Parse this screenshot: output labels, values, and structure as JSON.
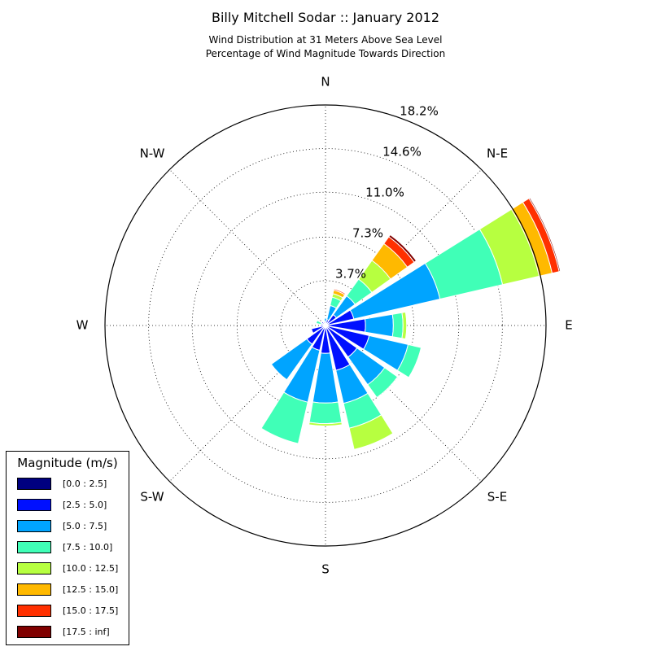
{
  "title": "Billy Mitchell Sodar :: January 2012",
  "subtitle1": "Wind Distribution at 31 Meters Above Sea Level",
  "subtitle2": "Percentage of Wind Magnitude Towards Direction",
  "chart_data": {
    "type": "windrose",
    "title": "Billy Mitchell Sodar :: January 2012",
    "subtitle": "Wind Distribution at 31 Meters Above Sea Level / Percentage of Wind Magnitude Towards Direction",
    "direction_labels": [
      "N",
      "N-E",
      "E",
      "S-E",
      "S",
      "S-W",
      "W",
      "N-W"
    ],
    "radial_ticks": [
      3.7,
      7.3,
      11.0,
      14.6,
      18.2
    ],
    "radial_tick_labels": [
      "3.7%",
      "7.3%",
      "11.0%",
      "14.6%",
      "18.2%"
    ],
    "rmax": 18.2,
    "legend_title": "Magnitude (m/s)",
    "legend_position": "lower-left",
    "bins": [
      "[0.0 : 2.5]",
      "[2.5 : 5.0]",
      "[5.0 : 7.5]",
      "[7.5 : 10.0]",
      "[10.0 : 12.5]",
      "[12.5 : 15.0]",
      "[15.0 : 17.5]",
      "[17.5 : inf]"
    ],
    "colors": [
      "#000080",
      "#0010ff",
      "#00a4ff",
      "#40ffb7",
      "#b7ff40",
      "#ffb900",
      "#ff3000",
      "#800000"
    ],
    "directions_deg": [
      0,
      22.5,
      45,
      67.5,
      90,
      112.5,
      135,
      157.5,
      180,
      202.5,
      225,
      247.5,
      270,
      292.5,
      315,
      337.5
    ],
    "cumulative_percent": [
      [
        0.1,
        0.3,
        0.6,
        0.6,
        0.6,
        0.6,
        0.6,
        0.6
      ],
      [
        0.1,
        0.5,
        1.7,
        2.4,
        2.7,
        3.0,
        3.1,
        3.1
      ],
      [
        0.1,
        1.1,
        3.0,
        4.7,
        6.6,
        8.3,
        9.0,
        9.2
      ],
      [
        0.1,
        2.4,
        9.7,
        15.0,
        18.1,
        19.2,
        19.8,
        19.9
      ],
      [
        0.1,
        3.3,
        5.6,
        6.4,
        6.7,
        6.7,
        6.7,
        6.7
      ],
      [
        0.1,
        3.7,
        7.0,
        8.1,
        8.1,
        8.1,
        8.1,
        8.1
      ],
      [
        0.1,
        3.2,
        6.0,
        7.3,
        7.3,
        7.3,
        7.3,
        7.3
      ],
      [
        0.1,
        3.8,
        6.6,
        8.7,
        10.5,
        10.5,
        10.5,
        10.5
      ],
      [
        0.1,
        2.3,
        6.4,
        8.1,
        8.3,
        8.3,
        8.3,
        8.3
      ],
      [
        0.1,
        2.1,
        6.5,
        10.0,
        10.0,
        10.0,
        10.0,
        10.0
      ],
      [
        0.1,
        1.9,
        5.5,
        5.5,
        5.5,
        5.5,
        5.5,
        5.5
      ],
      [
        0.1,
        1.2,
        1.2,
        1.2,
        1.2,
        1.2,
        1.2,
        1.2
      ],
      [
        0.1,
        0.4,
        0.4,
        0.4,
        0.4,
        0.4,
        0.4,
        0.4
      ],
      [
        0.1,
        0.3,
        0.4,
        0.8,
        0.8,
        0.8,
        0.8,
        0.8
      ],
      [
        0.1,
        0.4,
        0.4,
        0.4,
        0.4,
        0.4,
        0.4,
        0.4
      ],
      [
        0.1,
        0.3,
        0.3,
        0.3,
        0.3,
        0.3,
        0.3,
        0.3
      ]
    ]
  }
}
